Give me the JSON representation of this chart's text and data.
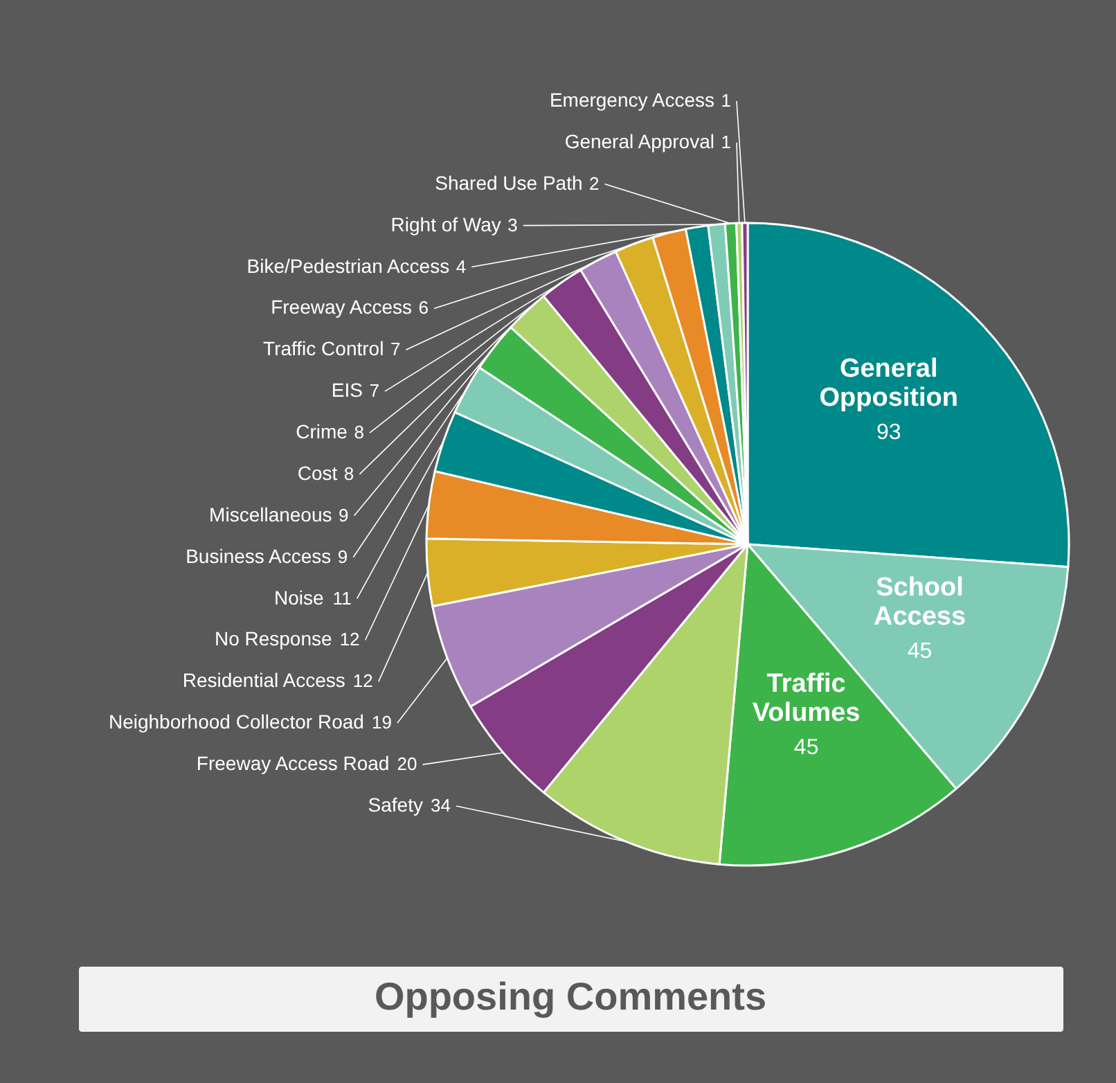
{
  "chart_data": {
    "type": "pie",
    "title": "Opposing Comments",
    "categories": [
      "General Opposition",
      "School Access",
      "Traffic Volumes",
      "Safety",
      "Freeway Access Road",
      "Neighborhood Collector Road",
      "Residential Access",
      "No Response",
      "Noise",
      "Business Access",
      "Miscellaneous",
      "Cost",
      "Crime",
      "EIS",
      "Traffic Control",
      "Freeway Access",
      "Bike/Pedestrian Access",
      "Right of Way",
      "Shared Use Path",
      "General Approval",
      "Emergency Access"
    ],
    "values": [
      93,
      45,
      45,
      34,
      20,
      19,
      12,
      12,
      11,
      9,
      9,
      8,
      8,
      7,
      7,
      6,
      4,
      3,
      2,
      1,
      1
    ],
    "colors": [
      "#00898a",
      "#80cbb6",
      "#3cb44a",
      "#add36a",
      "#843c84",
      "#a983be",
      "#d9b027",
      "#e88a26",
      "#00898a",
      "#80cbb6",
      "#3cb44a",
      "#add36a",
      "#843c84",
      "#a983be",
      "#d9b027",
      "#e88a26",
      "#00898a",
      "#80cbb6",
      "#3cb44a",
      "#add36a",
      "#843c84"
    ],
    "data_labels": true
  }
}
